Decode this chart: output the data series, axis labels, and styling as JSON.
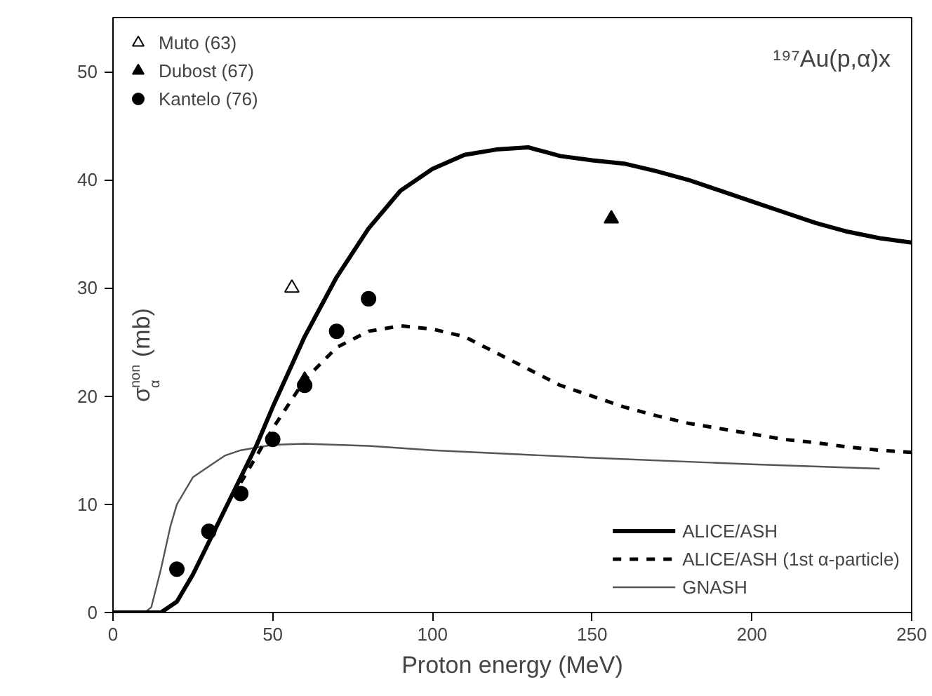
{
  "chart_data": {
    "type": "line",
    "xlabel": "Proton energy (MeV)",
    "ylabel": "σ$_{α}$$^{non}$ (mb)",
    "annotations": [
      "¹⁹⁷Au(p,α)x"
    ],
    "xlim": [
      0,
      250
    ],
    "ylim": [
      0,
      55
    ],
    "xticks": [
      0,
      50,
      100,
      150,
      200,
      250
    ],
    "yticks": [
      0,
      10,
      20,
      30,
      40,
      50
    ],
    "grid": false,
    "legend": "top left",
    "series": [
      {
        "name": "Muto (63)",
        "type": "scatter",
        "marker": "triangle",
        "color": "#ffffff",
        "x": [
          56
        ],
        "values": [
          30
        ]
      },
      {
        "name": "Dubost (67)",
        "type": "scatter",
        "marker": "triangle",
        "color": "#000000",
        "x": [
          60,
          156
        ],
        "values": [
          21.5,
          36.4
        ]
      },
      {
        "name": "Kantelo (76)",
        "type": "scatter",
        "marker": "circle",
        "color": "#000000",
        "x": [
          20,
          30,
          40,
          50,
          60,
          70,
          80
        ],
        "values": [
          4,
          7.5,
          11,
          16,
          21,
          26,
          29
        ]
      },
      {
        "name": "ALICE/ASH",
        "line_style": "solid",
        "color": "#000000",
        "x": [
          0,
          15,
          20,
          25,
          30,
          40,
          45,
          50,
          60,
          70,
          80,
          90,
          100,
          110,
          120,
          130,
          135,
          140,
          150,
          160,
          170,
          180,
          190,
          200,
          210,
          220,
          230,
          240,
          250
        ],
        "values": [
          0,
          0,
          1,
          3.5,
          6.5,
          12.5,
          15.5,
          19,
          25.5,
          31,
          35.5,
          39,
          41,
          42.3,
          42.8,
          43,
          42.6,
          42.2,
          41.8,
          41.5,
          40.8,
          40,
          39,
          38,
          37,
          36,
          35.2,
          34.6,
          34.2
        ]
      },
      {
        "name": "ALICE/ASH (1st α-particle)",
        "line_style": "dashed",
        "color": "#000000",
        "x": [
          40,
          50,
          60,
          70,
          80,
          90,
          100,
          110,
          120,
          130,
          140,
          150,
          160,
          170,
          180,
          190,
          200,
          210,
          220,
          230,
          240,
          250
        ],
        "values": [
          12,
          17,
          21.5,
          24.5,
          26,
          26.5,
          26.2,
          25.5,
          24,
          22.5,
          21,
          20,
          19,
          18.2,
          17.5,
          17,
          16.5,
          16,
          15.7,
          15.3,
          15,
          14.8
        ]
      },
      {
        "name": "GNASH",
        "line_style": "solid",
        "color": "#555555",
        "x": [
          0,
          10,
          12,
          15,
          18,
          20,
          25,
          30,
          35,
          40,
          50,
          60,
          80,
          100,
          150,
          200,
          240
        ],
        "values": [
          0,
          0,
          0.5,
          4,
          8,
          10,
          12.5,
          13.5,
          14.5,
          15,
          15.5,
          15.6,
          15.4,
          15,
          14.3,
          13.7,
          13.3
        ]
      }
    ]
  }
}
